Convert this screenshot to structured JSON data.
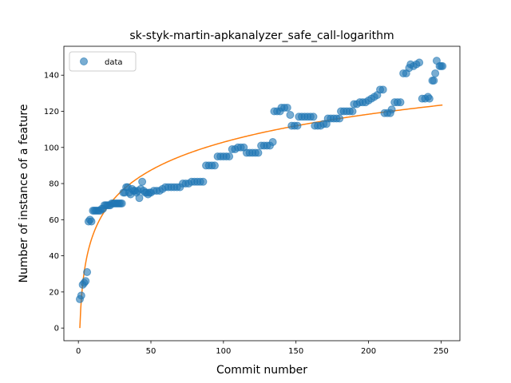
{
  "chart_data": {
    "type": "scatter",
    "title": "sk-styk-martin-apkanalyzer_safe_call-logarithm",
    "xlabel": "Commit number",
    "ylabel": "Number of instance of a feature",
    "xlim": [
      -10,
      263
    ],
    "ylim": [
      -7,
      156
    ],
    "xticks": [
      0,
      50,
      100,
      150,
      200,
      250
    ],
    "yticks": [
      0,
      20,
      40,
      60,
      80,
      100,
      120,
      140
    ],
    "grid": false,
    "legend": {
      "position": "top-left",
      "entries": [
        "data"
      ]
    },
    "colors": {
      "points": "#1f77b4",
      "fit": "#ff7f0e"
    },
    "series": [
      {
        "name": "data",
        "kind": "scatter",
        "points": [
          [
            1,
            16
          ],
          [
            2,
            18
          ],
          [
            3,
            24
          ],
          [
            4,
            25
          ],
          [
            5,
            26
          ],
          [
            6,
            31
          ],
          [
            7,
            59
          ],
          [
            8,
            60
          ],
          [
            9,
            59
          ],
          [
            10,
            65
          ],
          [
            11,
            65
          ],
          [
            12,
            65
          ],
          [
            13,
            65
          ],
          [
            14,
            65
          ],
          [
            15,
            65
          ],
          [
            16,
            66
          ],
          [
            17,
            66
          ],
          [
            18,
            68
          ],
          [
            19,
            68
          ],
          [
            20,
            68
          ],
          [
            21,
            68
          ],
          [
            22,
            68
          ],
          [
            23,
            69
          ],
          [
            24,
            69
          ],
          [
            25,
            69
          ],
          [
            26,
            69
          ],
          [
            27,
            69
          ],
          [
            28,
            69
          ],
          [
            29,
            69
          ],
          [
            30,
            69
          ],
          [
            31,
            75
          ],
          [
            32,
            75
          ],
          [
            33,
            78
          ],
          [
            34,
            78
          ],
          [
            35,
            75
          ],
          [
            36,
            74
          ],
          [
            37,
            77
          ],
          [
            38,
            76
          ],
          [
            39,
            76
          ],
          [
            40,
            75
          ],
          [
            41,
            76
          ],
          [
            42,
            72
          ],
          [
            43,
            77
          ],
          [
            44,
            81
          ],
          [
            45,
            76
          ],
          [
            46,
            75
          ],
          [
            47,
            75
          ],
          [
            48,
            74
          ],
          [
            49,
            75
          ],
          [
            50,
            75
          ],
          [
            52,
            76
          ],
          [
            54,
            76
          ],
          [
            56,
            76
          ],
          [
            58,
            77
          ],
          [
            60,
            78
          ],
          [
            62,
            78
          ],
          [
            64,
            78
          ],
          [
            66,
            78
          ],
          [
            68,
            78
          ],
          [
            70,
            78
          ],
          [
            72,
            80
          ],
          [
            74,
            80
          ],
          [
            76,
            80
          ],
          [
            78,
            81
          ],
          [
            80,
            81
          ],
          [
            82,
            81
          ],
          [
            84,
            81
          ],
          [
            86,
            81
          ],
          [
            88,
            90
          ],
          [
            90,
            90
          ],
          [
            92,
            90
          ],
          [
            94,
            90
          ],
          [
            96,
            95
          ],
          [
            98,
            95
          ],
          [
            100,
            95
          ],
          [
            102,
            95
          ],
          [
            104,
            95
          ],
          [
            106,
            99
          ],
          [
            108,
            99
          ],
          [
            110,
            100
          ],
          [
            112,
            100
          ],
          [
            114,
            100
          ],
          [
            116,
            97
          ],
          [
            118,
            97
          ],
          [
            120,
            97
          ],
          [
            122,
            97
          ],
          [
            124,
            97
          ],
          [
            126,
            101
          ],
          [
            128,
            101
          ],
          [
            130,
            101
          ],
          [
            132,
            101
          ],
          [
            134,
            103
          ],
          [
            135,
            120
          ],
          [
            137,
            120
          ],
          [
            139,
            120
          ],
          [
            140,
            122
          ],
          [
            142,
            122
          ],
          [
            144,
            122
          ],
          [
            146,
            118
          ],
          [
            147,
            112
          ],
          [
            149,
            112
          ],
          [
            151,
            112
          ],
          [
            152,
            117
          ],
          [
            154,
            117
          ],
          [
            156,
            117
          ],
          [
            158,
            117
          ],
          [
            160,
            117
          ],
          [
            162,
            117
          ],
          [
            163,
            112
          ],
          [
            165,
            112
          ],
          [
            167,
            112
          ],
          [
            169,
            113
          ],
          [
            171,
            113
          ],
          [
            172,
            116
          ],
          [
            174,
            116
          ],
          [
            176,
            116
          ],
          [
            178,
            116
          ],
          [
            180,
            116
          ],
          [
            181,
            120
          ],
          [
            183,
            120
          ],
          [
            185,
            120
          ],
          [
            187,
            120
          ],
          [
            189,
            120
          ],
          [
            190,
            124
          ],
          [
            192,
            124
          ],
          [
            194,
            125
          ],
          [
            196,
            125
          ],
          [
            198,
            125
          ],
          [
            200,
            126
          ],
          [
            202,
            127
          ],
          [
            204,
            128
          ],
          [
            206,
            129
          ],
          [
            208,
            132
          ],
          [
            210,
            132
          ],
          [
            211,
            119
          ],
          [
            213,
            119
          ],
          [
            215,
            119
          ],
          [
            216,
            121
          ],
          [
            218,
            125
          ],
          [
            220,
            125
          ],
          [
            222,
            125
          ],
          [
            224,
            141
          ],
          [
            226,
            141
          ],
          [
            228,
            144
          ],
          [
            229,
            146
          ],
          [
            231,
            145
          ],
          [
            233,
            146
          ],
          [
            235,
            147
          ],
          [
            237,
            127
          ],
          [
            239,
            127
          ],
          [
            241,
            128
          ],
          [
            242,
            127
          ],
          [
            244,
            137
          ],
          [
            245,
            137
          ],
          [
            246,
            141
          ],
          [
            247,
            148
          ],
          [
            249,
            145
          ],
          [
            250,
            145
          ],
          [
            251,
            145
          ]
        ]
      },
      {
        "name": "",
        "kind": "line",
        "model": "y = 22.344 * ln(x)",
        "coef": 22.344,
        "x_range": [
          1,
          251
        ]
      }
    ]
  }
}
